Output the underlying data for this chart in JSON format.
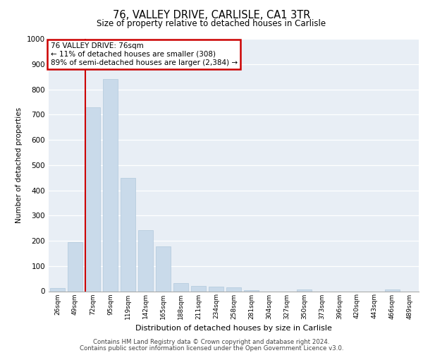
{
  "title1": "76, VALLEY DRIVE, CARLISLE, CA1 3TR",
  "title2": "Size of property relative to detached houses in Carlisle",
  "xlabel": "Distribution of detached houses by size in Carlisle",
  "ylabel": "Number of detached properties",
  "categories": [
    "26sqm",
    "49sqm",
    "72sqm",
    "95sqm",
    "119sqm",
    "142sqm",
    "165sqm",
    "188sqm",
    "211sqm",
    "234sqm",
    "258sqm",
    "281sqm",
    "304sqm",
    "327sqm",
    "350sqm",
    "373sqm",
    "396sqm",
    "420sqm",
    "443sqm",
    "466sqm",
    "489sqm"
  ],
  "values": [
    12,
    195,
    730,
    840,
    448,
    242,
    178,
    33,
    20,
    17,
    15,
    5,
    0,
    0,
    8,
    0,
    0,
    0,
    0,
    8,
    0
  ],
  "bar_color": "#c9daea",
  "bar_edge_color": "#b0c8dc",
  "marker_bar_index": 2,
  "marker_line_color": "#cc0000",
  "annotation_text": "76 VALLEY DRIVE: 76sqm\n← 11% of detached houses are smaller (308)\n89% of semi-detached houses are larger (2,384) →",
  "annotation_box_facecolor": "#ffffff",
  "annotation_border_color": "#cc0000",
  "ylim": [
    0,
    1000
  ],
  "yticks": [
    0,
    100,
    200,
    300,
    400,
    500,
    600,
    700,
    800,
    900,
    1000
  ],
  "footer1": "Contains HM Land Registry data © Crown copyright and database right 2024.",
  "footer2": "Contains public sector information licensed under the Open Government Licence v3.0.",
  "plot_bg_color": "#e8eef5",
  "fig_bg_color": "#ffffff"
}
